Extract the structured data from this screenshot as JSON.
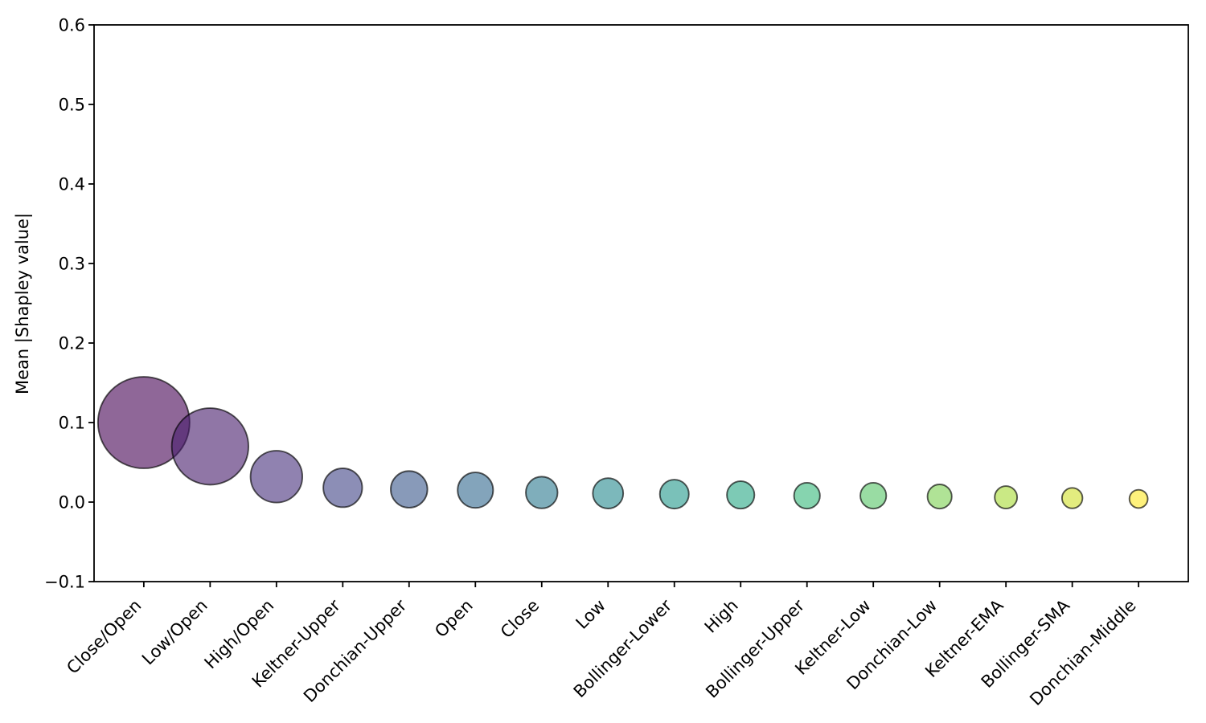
{
  "figure": {
    "background": "#ffffff",
    "title": ""
  },
  "chart_data": {
    "type": "scatter",
    "subtype": "bubble",
    "title": "",
    "xlabel": "",
    "ylabel": "Mean |Shapley value|",
    "categories": [
      "Close/Open",
      "Low/Open",
      "High/Open",
      "Keltner-Upper",
      "Donchian-Upper",
      "Open",
      "Close",
      "Low",
      "Bollinger-Lower",
      "High",
      "Bollinger-Upper",
      "Keltner-Low",
      "Donchian-Low",
      "Keltner-EMA",
      "Bollinger-SMA",
      "Donchian-Middle"
    ],
    "values": [
      0.1,
      0.07,
      0.032,
      0.018,
      0.016,
      0.015,
      0.012,
      0.011,
      0.01,
      0.009,
      0.008,
      0.008,
      0.007,
      0.006,
      0.005,
      0.004
    ],
    "ylim": [
      -0.1,
      0.6
    ],
    "yticks": [
      0.6,
      0.5,
      0.4,
      0.3,
      0.2,
      0.1,
      0.0,
      -0.1
    ],
    "ytick_labels": [
      "0.6",
      "0.5",
      "0.4",
      "0.3",
      "0.2",
      "0.1",
      "0.0",
      "−0.1"
    ],
    "xticklabel_rotation": 45,
    "grid": false,
    "legend": "none",
    "colormap": "viridis",
    "marker_alpha": 0.6,
    "marker_colors": [
      "#440154",
      "#461a6a",
      "#462f7c",
      "#404386",
      "#39568b",
      "#31688e",
      "#2a788e",
      "#24888d",
      "#21988a",
      "#27a783",
      "#35b779",
      "#55c466",
      "#7bd150",
      "#a6db34",
      "#d1e029",
      "#fde725"
    ],
    "marker_edge_color": "#000000",
    "axis_color": "#000000",
    "size_rule": "bubble area proportional to value"
  }
}
